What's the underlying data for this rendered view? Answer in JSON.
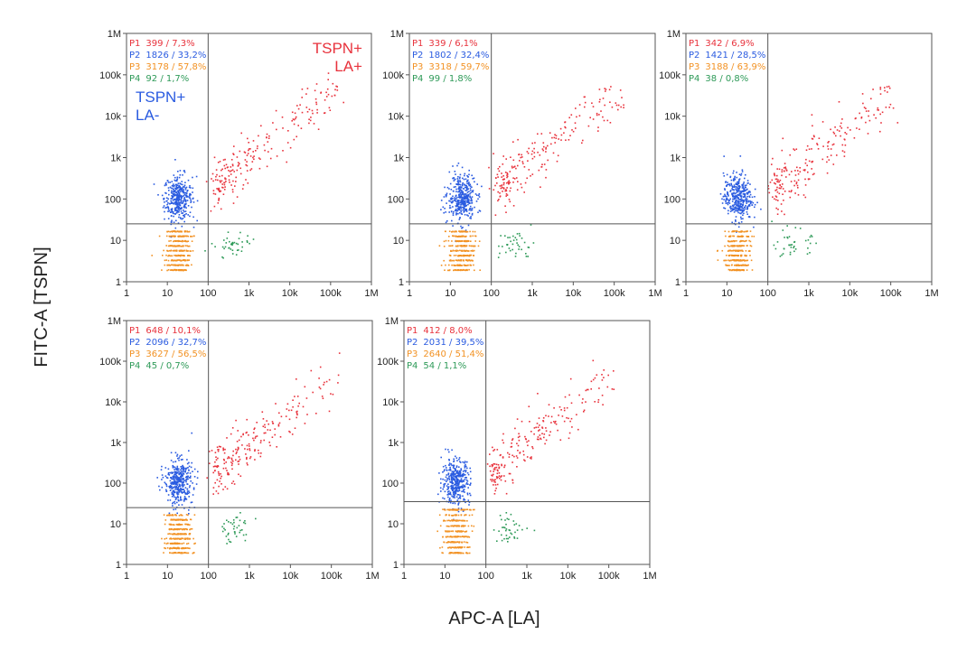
{
  "figure": {
    "y_axis_title": "FITC-A [TSPN]",
    "x_axis_title": "APC-A [LA]"
  },
  "colors": {
    "P1": "#e8323c",
    "P2": "#2a5be0",
    "P3": "#f29224",
    "P4": "#2e9a58",
    "axis": "#555555"
  },
  "chart_data": [
    {
      "type": "scatter",
      "panel": 1,
      "x_axis": "APC-A [LA]",
      "y_axis": "FITC-A [TSPN]",
      "xscale": "log",
      "yscale": "log",
      "xlim": [
        1,
        1000000
      ],
      "ylim": [
        1,
        1000000
      ],
      "x_ticks": [
        "1",
        "10",
        "100",
        "1k",
        "10k",
        "100k",
        "1M"
      ],
      "y_ticks": [
        "1",
        "10",
        "100",
        "1k",
        "10k",
        "100k",
        "1M"
      ],
      "gate_x": 100,
      "gate_y": 25,
      "populations": [
        {
          "gate": "P1",
          "label": "P1",
          "count": "399",
          "percent": "7,3%"
        },
        {
          "gate": "P2",
          "label": "P2",
          "count": "1826",
          "percent": "33,2%"
        },
        {
          "gate": "P3",
          "label": "P3",
          "count": "3178",
          "percent": "57,8%"
        },
        {
          "gate": "P4",
          "label": "P4",
          "count": "92",
          "percent": "1,7%"
        }
      ],
      "annotations": [
        {
          "text": "TSPN+",
          "color": "P1",
          "corner": "top-right"
        },
        {
          "text": "LA+",
          "color": "P1",
          "corner": "top-right"
        },
        {
          "text": "TSPN+",
          "color": "P2",
          "corner": "top-left"
        },
        {
          "text": "LA-",
          "color": "P2",
          "corner": "top-left"
        }
      ]
    },
    {
      "type": "scatter",
      "panel": 2,
      "xscale": "log",
      "yscale": "log",
      "xlim": [
        1,
        1000000
      ],
      "ylim": [
        1,
        1000000
      ],
      "x_ticks": [
        "1",
        "10",
        "100",
        "1k",
        "10k",
        "100k",
        "1M"
      ],
      "y_ticks": [
        "1",
        "10",
        "100",
        "1k",
        "10k",
        "100k",
        "1M"
      ],
      "gate_x": 100,
      "gate_y": 25,
      "populations": [
        {
          "gate": "P1",
          "label": "P1",
          "count": "339",
          "percent": "6,1%"
        },
        {
          "gate": "P2",
          "label": "P2",
          "count": "1802",
          "percent": "32,4%"
        },
        {
          "gate": "P3",
          "label": "P3",
          "count": "3318",
          "percent": "59,7%"
        },
        {
          "gate": "P4",
          "label": "P4",
          "count": "99",
          "percent": "1,8%"
        }
      ],
      "annotations": []
    },
    {
      "type": "scatter",
      "panel": 3,
      "xscale": "log",
      "yscale": "log",
      "xlim": [
        1,
        1000000
      ],
      "ylim": [
        1,
        1000000
      ],
      "x_ticks": [
        "1",
        "10",
        "100",
        "1k",
        "10k",
        "100k",
        "1M"
      ],
      "y_ticks": [
        "1",
        "10",
        "100",
        "1k",
        "10k",
        "100k",
        "1M"
      ],
      "gate_x": 100,
      "gate_y": 25,
      "populations": [
        {
          "gate": "P1",
          "label": "P1",
          "count": "342",
          "percent": "6,9%"
        },
        {
          "gate": "P2",
          "label": "P2",
          "count": "1421",
          "percent": "28,5%"
        },
        {
          "gate": "P3",
          "label": "P3",
          "count": "3188",
          "percent": "63,9%"
        },
        {
          "gate": "P4",
          "label": "P4",
          "count": "38",
          "percent": "0,8%"
        }
      ],
      "annotations": []
    },
    {
      "type": "scatter",
      "panel": 4,
      "xscale": "log",
      "yscale": "log",
      "xlim": [
        1,
        1000000
      ],
      "ylim": [
        1,
        1000000
      ],
      "x_ticks": [
        "1",
        "10",
        "100",
        "1k",
        "10k",
        "100k",
        "1M"
      ],
      "y_ticks": [
        "1",
        "10",
        "100",
        "1k",
        "10k",
        "100k",
        "1M"
      ],
      "gate_x": 100,
      "gate_y": 25,
      "populations": [
        {
          "gate": "P1",
          "label": "P1",
          "count": "648",
          "percent": "10,1%"
        },
        {
          "gate": "P2",
          "label": "P2",
          "count": "2096",
          "percent": "32,7%"
        },
        {
          "gate": "P3",
          "label": "P3",
          "count": "3627",
          "percent": "56,5%"
        },
        {
          "gate": "P4",
          "label": "P4",
          "count": "45",
          "percent": "0,7%"
        }
      ],
      "annotations": []
    },
    {
      "type": "scatter",
      "panel": 5,
      "xscale": "log",
      "yscale": "log",
      "xlim": [
        1,
        1000000
      ],
      "ylim": [
        1,
        1000000
      ],
      "x_ticks": [
        "1",
        "10",
        "100",
        "1k",
        "10k",
        "100k",
        "1M"
      ],
      "y_ticks": [
        "1",
        "10",
        "100",
        "1k",
        "10k",
        "100k",
        "1M"
      ],
      "gate_x": 100,
      "gate_y": 35,
      "populations": [
        {
          "gate": "P1",
          "label": "P1",
          "count": "412",
          "percent": "8,0%"
        },
        {
          "gate": "P2",
          "label": "P2",
          "count": "2031",
          "percent": "39,5%"
        },
        {
          "gate": "P3",
          "label": "P3",
          "count": "2640",
          "percent": "51,4%"
        },
        {
          "gate": "P4",
          "label": "P4",
          "count": "54",
          "percent": "1,1%"
        }
      ],
      "annotations": []
    }
  ]
}
